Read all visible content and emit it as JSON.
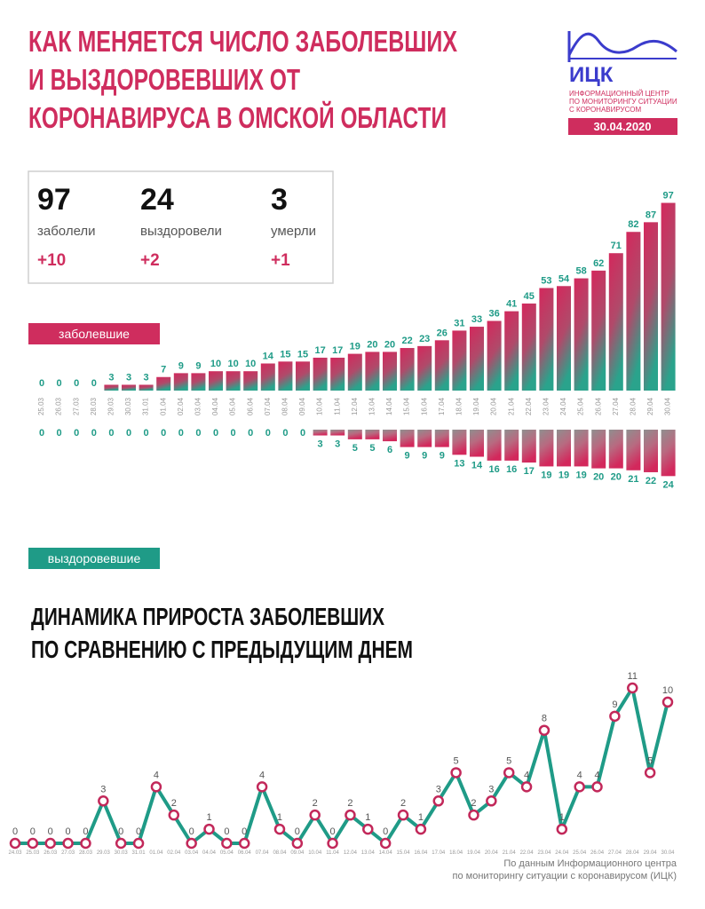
{
  "header": {
    "title_lines": [
      "КАК МЕНЯЕТСЯ ЧИСЛО ЗАБОЛЕВШИХ",
      "И ВЫЗДОРОВЕВШИХ ОТ",
      "КОРОНАВИРУСА В ОМСКОЙ ОБЛАСТИ"
    ],
    "logo": "ИЦК",
    "logo_lines": [
      "ИНФОРМАЦИОННЫЙ ЦЕНТР",
      "ПО МОНИТОРИНГУ СИТУАЦИИ",
      "С КОРОНАВИРУСОМ"
    ],
    "date": "30.04.2020"
  },
  "stats": [
    {
      "value": 97,
      "label": "заболели",
      "change": "+10"
    },
    {
      "value": 24,
      "label": "выздоровели",
      "change": "+2"
    },
    {
      "value": 3,
      "label": "умерли",
      "change": "+1"
    }
  ],
  "chart_data": [
    {
      "type": "bar",
      "categories": [
        "25.03",
        "26.03",
        "27.03",
        "28.03",
        "29.03",
        "30.03",
        "31.01",
        "01.04",
        "02.04",
        "03.04",
        "04.04",
        "05.04",
        "06.04",
        "07.04",
        "08.04",
        "09.04",
        "10.04",
        "11.04",
        "12.04",
        "13.04",
        "14.04",
        "15.04",
        "16.04",
        "17.04",
        "18.04",
        "19.04",
        "20.04",
        "21.04",
        "22.04",
        "23.04",
        "24.04",
        "25.04",
        "26.04",
        "27.04",
        "28.04",
        "29.04",
        "30.04"
      ],
      "series": [
        {
          "name": "заболевшие",
          "color": "#cf2d5e",
          "values": [
            0,
            0,
            0,
            0,
            3,
            3,
            3,
            7,
            9,
            9,
            10,
            10,
            10,
            14,
            15,
            15,
            17,
            17,
            19,
            20,
            20,
            22,
            23,
            26,
            31,
            33,
            36,
            41,
            45,
            53,
            54,
            58,
            62,
            71,
            82,
            87,
            97
          ]
        },
        {
          "name": "выздоровевшие",
          "color": "#1f9b87",
          "values": [
            0,
            0,
            0,
            0,
            0,
            0,
            0,
            0,
            0,
            0,
            0,
            0,
            0,
            0,
            0,
            0,
            3,
            3,
            5,
            5,
            6,
            9,
            9,
            9,
            13,
            14,
            16,
            16,
            17,
            19,
            19,
            19,
            20,
            20,
            21,
            22,
            24
          ]
        }
      ]
    },
    {
      "type": "line",
      "title_lines": [
        "ДИНАМИКА ПРИРОСТА ЗАБОЛЕВШИХ",
        "ПО СРАВНЕНИЮ С ПРЕДЫДУЩИМ ДНЕМ"
      ],
      "categories": [
        "24.03",
        "25.03",
        "26.03",
        "27.03",
        "28.03",
        "29.03",
        "30.03",
        "31.01",
        "01.04",
        "02.04",
        "03.04",
        "04.04",
        "05.04",
        "06.04",
        "07.04",
        "08.04",
        "09.04",
        "10.04",
        "11.04",
        "12.04",
        "13.04",
        "14.04",
        "15.04",
        "16.04",
        "17.04",
        "18.04",
        "19.04",
        "20.04",
        "21.04",
        "22.04",
        "23.04",
        "24.04",
        "25.04",
        "26.04",
        "27.04",
        "28.04",
        "29.04",
        "30.04"
      ],
      "values": [
        0,
        0,
        0,
        0,
        0,
        3,
        0,
        0,
        4,
        2,
        0,
        1,
        0,
        0,
        4,
        1,
        0,
        2,
        0,
        2,
        1,
        0,
        2,
        1,
        3,
        5,
        2,
        3,
        5,
        4,
        8,
        1,
        4,
        4,
        9,
        11,
        5,
        10
      ],
      "color": "#1f9b87",
      "marker_color": "#c2285a",
      "source_lines": [
        "По данным Информационного центра",
        "по мониторингу ситуации с коронавирусом (ИЦК)"
      ]
    }
  ]
}
